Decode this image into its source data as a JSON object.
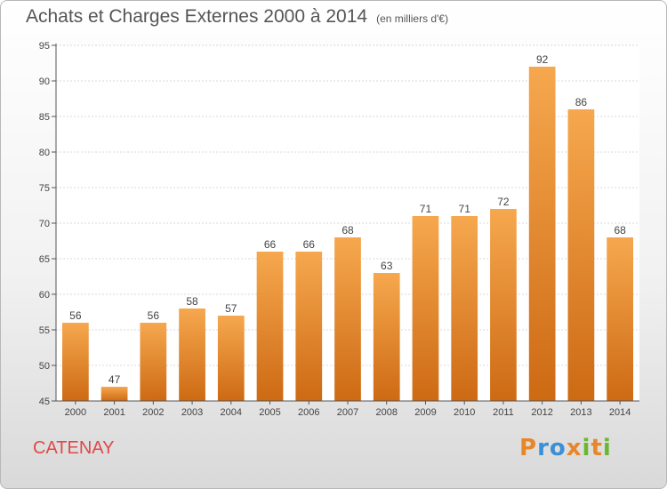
{
  "title": "Achats et Charges Externes 2000 à 2014",
  "unit": "(en milliers d'€)",
  "place": "CATENAY",
  "logo": "Proxiti",
  "colors": {
    "bar_light": "#f6a84e",
    "bar_dark": "#cd6a14",
    "place": "#e04848",
    "logo_letters": [
      "#e8862a",
      "#3b8fd6",
      "#3b8fd6",
      "#e8862a",
      "#6ab830",
      "#e8862a",
      "#6ab830"
    ]
  },
  "chart_data": {
    "type": "bar",
    "categories": [
      "2000",
      "2001",
      "2002",
      "2003",
      "2004",
      "2005",
      "2006",
      "2007",
      "2008",
      "2009",
      "2010",
      "2011",
      "2012",
      "2013",
      "2014"
    ],
    "values": [
      56,
      47,
      56,
      58,
      57,
      66,
      66,
      68,
      63,
      71,
      71,
      72,
      92,
      86,
      68
    ],
    "title": "Achats et Charges Externes 2000 à 2014",
    "ylabel": "",
    "xlabel": "",
    "ylim": [
      45,
      95
    ],
    "yticks": [
      45,
      50,
      55,
      60,
      65,
      70,
      75,
      80,
      85,
      90,
      95
    ],
    "grid": true,
    "data_labels": true
  }
}
